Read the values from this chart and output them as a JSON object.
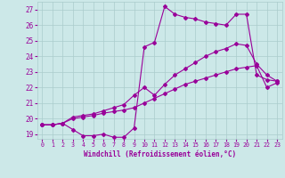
{
  "xlabel": "Windchill (Refroidissement éolien,°C)",
  "bg_color": "#cce8e8",
  "line_color": "#990099",
  "grid_color": "#aacccc",
  "x_ticks": [
    0,
    1,
    2,
    3,
    4,
    5,
    6,
    7,
    8,
    9,
    10,
    11,
    12,
    13,
    14,
    15,
    16,
    17,
    18,
    19,
    20,
    21,
    22,
    23
  ],
  "y_ticks": [
    19,
    20,
    21,
    22,
    23,
    24,
    25,
    26,
    27
  ],
  "xlim": [
    -0.5,
    23.5
  ],
  "ylim": [
    18.7,
    27.5
  ],
  "line1_x": [
    0,
    1,
    2,
    3,
    4,
    5,
    6,
    7,
    8,
    9,
    10,
    11,
    12,
    13,
    14,
    15,
    16,
    17,
    18,
    19,
    20,
    21,
    22,
    23
  ],
  "line1_y": [
    19.6,
    19.6,
    19.7,
    19.3,
    18.9,
    18.9,
    19.0,
    18.8,
    18.8,
    19.4,
    24.6,
    24.9,
    27.2,
    26.7,
    26.5,
    26.4,
    26.2,
    26.1,
    26.0,
    26.7,
    26.7,
    22.8,
    22.5,
    22.4
  ],
  "line2_x": [
    0,
    1,
    2,
    3,
    4,
    5,
    6,
    7,
    8,
    9,
    10,
    11,
    12,
    13,
    14,
    15,
    16,
    17,
    18,
    19,
    20,
    21,
    22,
    23
  ],
  "line2_y": [
    19.6,
    19.6,
    19.7,
    20.1,
    20.2,
    20.3,
    20.5,
    20.7,
    20.9,
    21.5,
    22.0,
    21.5,
    22.2,
    22.8,
    23.2,
    23.6,
    24.0,
    24.3,
    24.5,
    24.8,
    24.7,
    23.5,
    22.8,
    22.4
  ],
  "line3_x": [
    0,
    1,
    2,
    3,
    4,
    5,
    6,
    7,
    8,
    9,
    10,
    11,
    12,
    13,
    14,
    15,
    16,
    17,
    18,
    19,
    20,
    21,
    22,
    23
  ],
  "line3_y": [
    19.6,
    19.6,
    19.7,
    20.0,
    20.1,
    20.2,
    20.35,
    20.45,
    20.55,
    20.7,
    21.0,
    21.3,
    21.6,
    21.9,
    22.2,
    22.4,
    22.6,
    22.8,
    23.0,
    23.2,
    23.3,
    23.4,
    22.0,
    22.3
  ]
}
